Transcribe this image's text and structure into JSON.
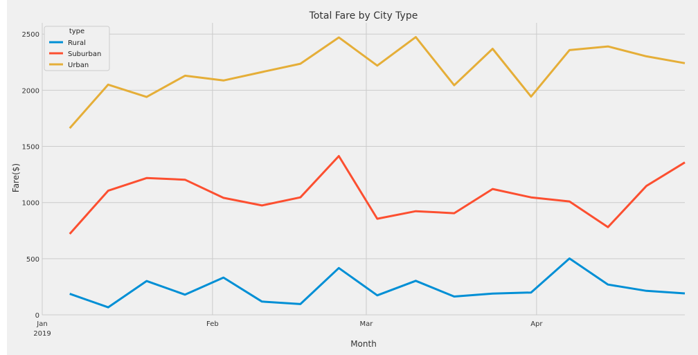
{
  "chart_data": {
    "type": "line",
    "title": "Total Fare by City Type",
    "xlabel": "Month",
    "ylabel": "Fare($)",
    "ylim": [
      0,
      2600
    ],
    "yticks": [
      0,
      500,
      1000,
      1500,
      2000,
      2500
    ],
    "x": [
      "2019-01-06",
      "2019-01-13",
      "2019-01-20",
      "2019-01-27",
      "2019-02-03",
      "2019-02-10",
      "2019-02-17",
      "2019-02-24",
      "2019-03-03",
      "2019-03-10",
      "2019-03-17",
      "2019-03-24",
      "2019-03-31",
      "2019-04-07",
      "2019-04-14",
      "2019-04-21",
      "2019-04-28"
    ],
    "xticks": [
      {
        "label": "Jan",
        "sublabel": "2019"
      },
      {
        "label": "Feb",
        "sublabel": ""
      },
      {
        "label": "Mar",
        "sublabel": ""
      },
      {
        "label": "Apr",
        "sublabel": ""
      }
    ],
    "series": [
      {
        "name": "Rural",
        "color": "#008fd5",
        "values": [
          187,
          67,
          301,
          180,
          332,
          118,
          96,
          417,
          174,
          303,
          163,
          190,
          199,
          502,
          270,
          214,
          191
        ]
      },
      {
        "name": "Suburban",
        "color": "#fc4f30",
        "values": [
          721,
          1105,
          1218,
          1203,
          1042,
          974,
          1046,
          1414,
          856,
          923,
          905,
          1121,
          1046,
          1010,
          781,
          1148,
          1357
        ]
      },
      {
        "name": "Urban",
        "color": "#e5ae38",
        "values": [
          1662,
          2050,
          1940,
          2129,
          2087,
          2162,
          2236,
          2470,
          2219,
          2473,
          2044,
          2369,
          1943,
          2357,
          2390,
          2302,
          2241
        ]
      }
    ],
    "legend": {
      "title": "type",
      "placement": "upper left"
    },
    "grid": true
  }
}
